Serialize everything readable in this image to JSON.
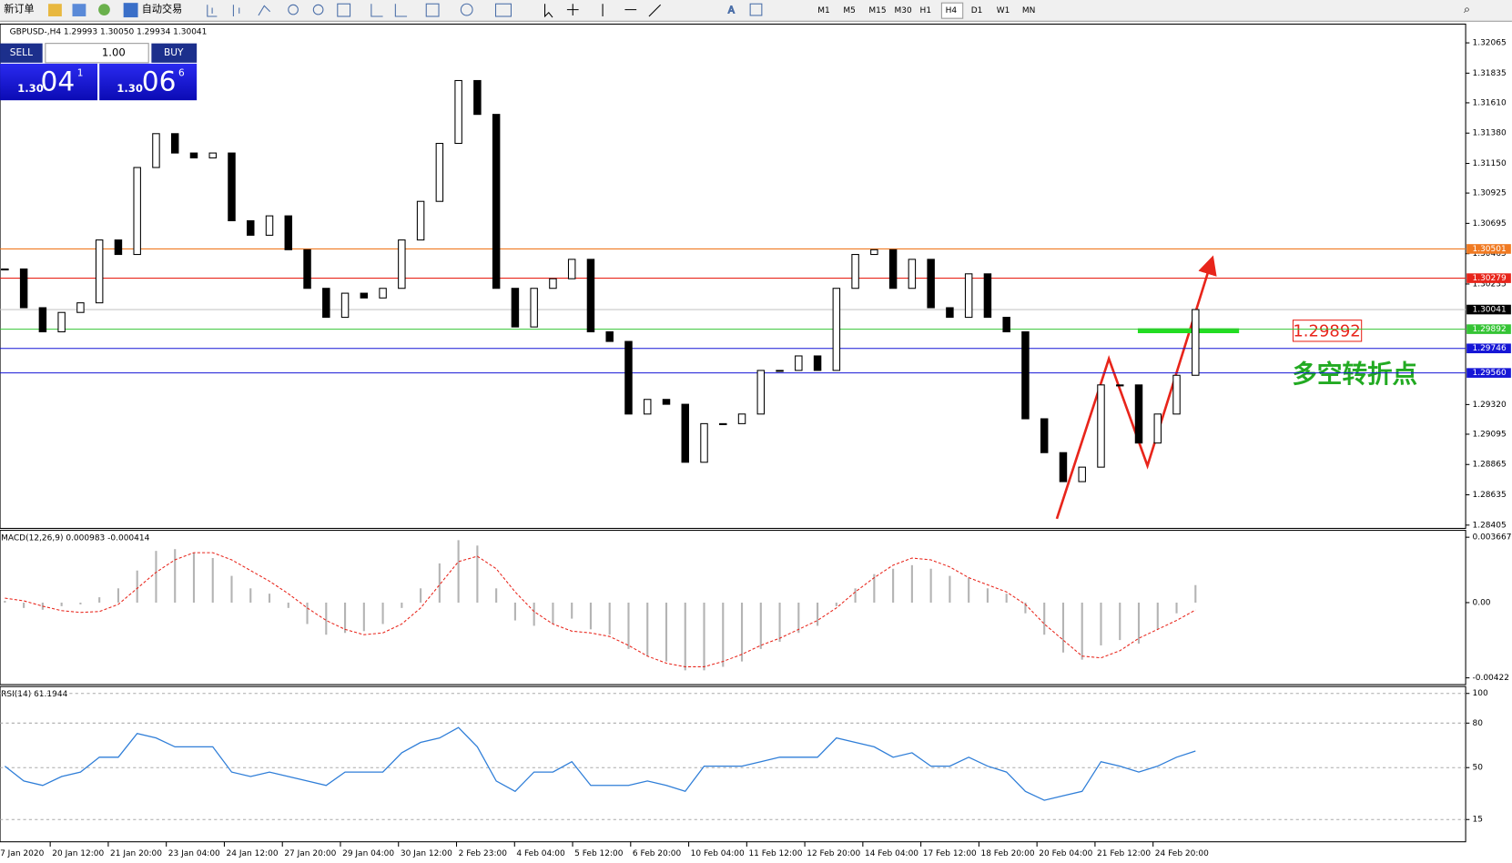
{
  "toolbar": {
    "items": [
      "新订单",
      "自动交易"
    ],
    "timeframes": [
      "M1",
      "M5",
      "M15",
      "M30",
      "H1",
      "H4",
      "D1",
      "W1",
      "MN"
    ]
  },
  "trade_panel": {
    "sell": "SELL",
    "lots": "1.00",
    "buy": "BUY",
    "sell_big": "1.30",
    "sell_pips": "04",
    "sell_frac": "1",
    "buy_big": "1.30",
    "buy_pips": "06",
    "buy_frac": "6"
  },
  "time_axis": {
    "labels": [
      "7 Jan 2020",
      "20 Jan 12:00",
      "21 Jan 20:00",
      "23 Jan 04:00",
      "24 Jan 12:00",
      "27 Jan 20:00",
      "29 Jan 04:00",
      "30 Jan 12:00",
      "2 Feb 23:00",
      "4 Feb 04:00",
      "5 Feb 12:00",
      "6 Feb 20:00",
      "10 Feb 04:00",
      "11 Feb 12:00",
      "12 Feb 20:00",
      "14 Feb 04:00",
      "17 Feb 12:00",
      "18 Feb 20:00",
      "20 Feb 04:00",
      "21 Feb 12:00",
      "24 Feb 20:00"
    ]
  },
  "chart_data": [
    {
      "type": "candlestick",
      "title": "GBPUSD-,H4 1.29993 1.30050 1.29934 1.30041",
      "closes": [
        1.30349,
        1.30055,
        1.29872,
        1.30019,
        1.30092,
        1.30569,
        1.30459,
        1.31119,
        1.31376,
        1.31229,
        1.31192,
        1.31229,
        1.30715,
        1.30605,
        1.30752,
        1.30495,
        1.30202,
        1.29982,
        1.30165,
        1.30129,
        1.30202,
        1.30569,
        1.30862,
        1.31302,
        1.31779,
        1.31522,
        1.30202,
        1.29909,
        1.30202,
        1.30275,
        1.30422,
        1.29872,
        1.29799,
        1.29248,
        1.29359,
        1.29322,
        1.28882,
        1.29175,
        1.29175,
        1.29248,
        1.29579,
        1.29579,
        1.29689,
        1.29579,
        1.30202,
        1.30459,
        1.30495,
        1.30202,
        1.30422,
        1.30055,
        1.29982,
        1.30312,
        1.29982,
        1.29872,
        1.29212,
        1.28955,
        1.28735,
        1.28845,
        1.29469,
        1.29469,
        1.29028,
        1.29248,
        1.29542,
        1.30041
      ],
      "up_color": "#ffffff",
      "down_color": "#000000",
      "ylim": [
        1.2838,
        1.322
      ],
      "yticks": [
        1.32065,
        1.31835,
        {
          "value": 1.3161,
          "label": "1.31610"
        },
        {
          "value": 1.3138,
          "label": "1.31380"
        },
        {
          "value": 1.3115,
          "label": "1.31150"
        },
        1.30925,
        1.30695,
        1.30465,
        1.30235,
        {
          "value": 1.2932,
          "label": "1.29320"
        },
        1.29095,
        1.28865,
        1.28635,
        1.28405
      ],
      "price_lines": [
        {
          "value": 1.30501,
          "color": "#f07a22"
        },
        {
          "value": 1.30279,
          "color": "#e8251b"
        },
        {
          "value": 1.30041,
          "color": "#000000"
        },
        {
          "value": 1.29892,
          "color": "#35c435"
        },
        {
          "value": 1.29746,
          "color": "#1616d6"
        },
        {
          "value": 1.2956,
          "label": "1.29560",
          "color": "#1616d6"
        }
      ],
      "annotations": [
        "1.29892",
        "多空转折点"
      ]
    },
    {
      "type": "macd",
      "title": "MACD(12,26,9) 0.000983 -0.000414",
      "histogram": {
        "color": "#b4b4b4",
        "values": [
          0.0001,
          -0.0003,
          -0.0004,
          -0.0002,
          -0.0001,
          0.0003,
          0.0008,
          0.0018,
          0.0029,
          0.003,
          0.0028,
          0.0025,
          0.0015,
          0.0008,
          0.0005,
          -0.0003,
          -0.0012,
          -0.0018,
          -0.0017,
          -0.0016,
          -0.0012,
          -0.0003,
          0.0008,
          0.0022,
          0.0035,
          0.0032,
          0.0008,
          -0.001,
          -0.0013,
          -0.0012,
          -0.0009,
          -0.0015,
          -0.0018,
          -0.0026,
          -0.003,
          -0.0033,
          -0.0038,
          -0.0038,
          -0.0036,
          -0.0033,
          -0.0026,
          -0.0022,
          -0.0017,
          -0.0013,
          -0.0002,
          0.0008,
          0.0016,
          0.0019,
          0.0021,
          0.0019,
          0.0015,
          0.0014,
          0.0008,
          0.0005,
          -0.0006,
          -0.0018,
          -0.0028,
          -0.0032,
          -0.0024,
          -0.0021,
          -0.0023,
          -0.0015,
          -0.0006,
          0.000983
        ]
      },
      "signal": {
        "color": "#e8251b",
        "values": [
          0.00025,
          0.0001,
          -0.0002,
          -0.00045,
          -0.00055,
          -0.0005,
          -0.0001,
          0.0008,
          0.0017,
          0.0024,
          0.0028,
          0.0028,
          0.0024,
          0.0018,
          0.0012,
          0.0005,
          -0.0003,
          -0.001,
          -0.0015,
          -0.0018,
          -0.0017,
          -0.0012,
          -0.0003,
          0.001,
          0.0023,
          0.0026,
          0.0019,
          0.0006,
          -0.0005,
          -0.0012,
          -0.0016,
          -0.0017,
          -0.0019,
          -0.0024,
          -0.003,
          -0.0034,
          -0.0036,
          -0.0036,
          -0.0033,
          -0.0029,
          -0.0024,
          -0.002,
          -0.0015,
          -0.001,
          -0.0003,
          0.0006,
          0.0014,
          0.0021,
          0.0025,
          0.0024,
          0.002,
          0.0014,
          0.001,
          0.0006,
          -0.0001,
          -0.0012,
          -0.0021,
          -0.003,
          -0.0031,
          -0.0027,
          -0.002,
          -0.0015,
          -0.001,
          -0.000414
        ]
      },
      "ylim": [
        -0.0046,
        0.004
      ],
      "yticks": [
        0.003667,
        {
          "value": 0,
          "label": "0.00"
        },
        -0.00422
      ]
    },
    {
      "type": "line",
      "title": "RSI(14) 61.1944",
      "color": "#2f7ed8",
      "values": [
        51,
        41,
        38,
        44,
        47,
        57,
        57,
        73,
        70,
        64,
        64,
        64,
        47,
        44,
        47,
        44,
        41,
        38,
        47,
        47,
        47,
        60,
        67,
        70,
        77,
        64,
        41,
        34,
        47,
        47,
        54,
        38,
        38,
        38,
        41,
        38,
        34,
        51,
        51,
        51,
        54,
        57,
        57,
        57,
        70,
        67,
        64,
        57,
        60,
        51,
        51,
        57,
        51,
        47,
        34,
        28,
        31,
        34,
        54,
        51,
        47,
        51,
        57,
        61.1944
      ],
      "ylim": [
        0,
        104
      ],
      "yticks": [
        100,
        80,
        50,
        15
      ],
      "grid": true
    }
  ]
}
